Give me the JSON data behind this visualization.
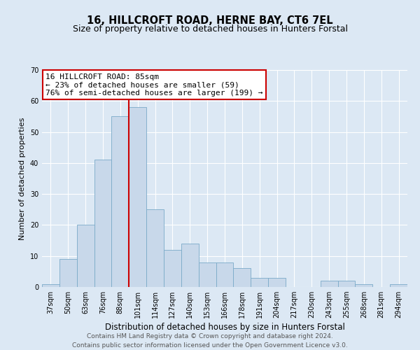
{
  "title": "16, HILLCROFT ROAD, HERNE BAY, CT6 7EL",
  "subtitle": "Size of property relative to detached houses in Hunters Forstal",
  "xlabel": "Distribution of detached houses by size in Hunters Forstal",
  "ylabel": "Number of detached properties",
  "bar_labels": [
    "37sqm",
    "50sqm",
    "63sqm",
    "76sqm",
    "88sqm",
    "101sqm",
    "114sqm",
    "127sqm",
    "140sqm",
    "153sqm",
    "166sqm",
    "178sqm",
    "191sqm",
    "204sqm",
    "217sqm",
    "230sqm",
    "243sqm",
    "255sqm",
    "268sqm",
    "281sqm",
    "294sqm"
  ],
  "bar_values": [
    1,
    9,
    20,
    41,
    55,
    58,
    25,
    12,
    14,
    8,
    8,
    6,
    3,
    3,
    0,
    0,
    2,
    2,
    1,
    0,
    1
  ],
  "bar_color": "#c8d8ea",
  "bar_edge_color": "#7aaac8",
  "ylim": [
    0,
    70
  ],
  "yticks": [
    0,
    10,
    20,
    30,
    40,
    50,
    60,
    70
  ],
  "vline_x": 4.5,
  "vline_color": "#cc0000",
  "annotation_title": "16 HILLCROFT ROAD: 85sqm",
  "annotation_line1": "← 23% of detached houses are smaller (59)",
  "annotation_line2": "76% of semi-detached houses are larger (199) →",
  "annotation_box_color": "#ffffff",
  "annotation_border_color": "#cc0000",
  "background_color": "#dce8f4",
  "grid_color": "#ffffff",
  "footer_line1": "Contains HM Land Registry data © Crown copyright and database right 2024.",
  "footer_line2": "Contains public sector information licensed under the Open Government Licence v3.0.",
  "title_fontsize": 10.5,
  "subtitle_fontsize": 9,
  "xlabel_fontsize": 8.5,
  "ylabel_fontsize": 8,
  "tick_fontsize": 7,
  "footer_fontsize": 6.5,
  "annotation_fontsize": 8
}
